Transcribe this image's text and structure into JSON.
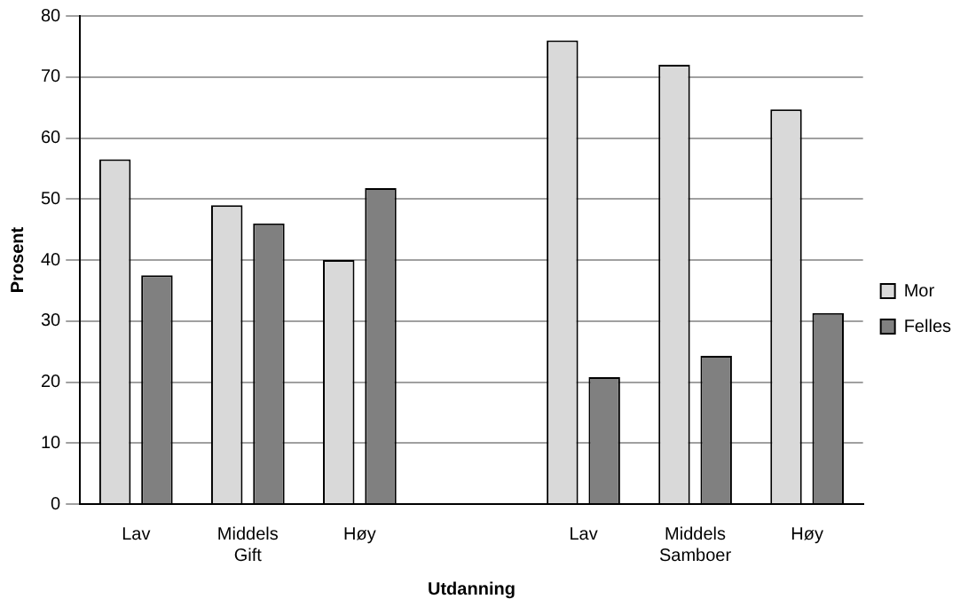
{
  "chart_data": {
    "type": "bar",
    "xlabel": "Utdanning",
    "ylabel": "Prosent",
    "categories": [
      "Lav",
      "Middels\nGift",
      "Høy",
      null,
      "Lav",
      "Middels\nSamboer",
      "Høy"
    ],
    "series": [
      {
        "name": "Mor",
        "color": "#d9d9d9",
        "values": [
          56.5,
          49,
          40,
          null,
          76,
          72,
          64.7
        ]
      },
      {
        "name": "Felles",
        "color": "#808080",
        "values": [
          37.5,
          46,
          51.8,
          null,
          20.8,
          24.3,
          31.3
        ]
      }
    ],
    "ylim": [
      0,
      80
    ],
    "yticks": [
      0,
      10,
      20,
      30,
      40,
      50,
      60,
      70,
      80
    ],
    "grid": "y",
    "legend": "right"
  }
}
